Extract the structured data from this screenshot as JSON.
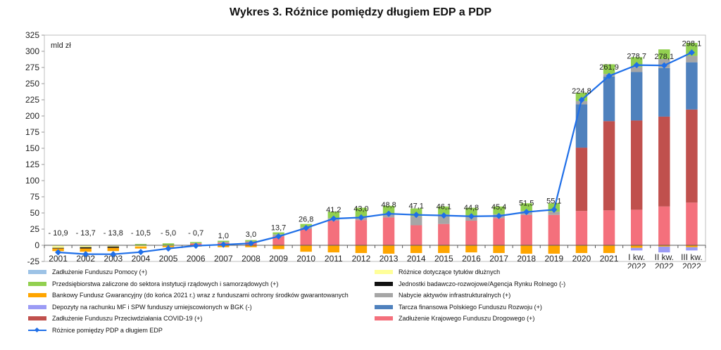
{
  "chart_data": {
    "type": "bar",
    "title": "Wykres 3. Różnice pomiędzy długiem EDP a PDP",
    "unit_label": "mld zł",
    "ylim": [
      -25,
      325
    ],
    "yticks": [
      -25,
      0,
      25,
      50,
      75,
      100,
      125,
      150,
      175,
      200,
      225,
      250,
      275,
      300,
      325
    ],
    "categories": [
      [
        "2001"
      ],
      [
        "2002"
      ],
      [
        "2003"
      ],
      [
        "2004"
      ],
      [
        "2005"
      ],
      [
        "2006"
      ],
      [
        "2007"
      ],
      [
        "2008"
      ],
      [
        "2009"
      ],
      [
        "2010"
      ],
      [
        "2011"
      ],
      [
        "2012"
      ],
      [
        "2013"
      ],
      [
        "2014"
      ],
      [
        "2015"
      ],
      [
        "2016"
      ],
      [
        "2017"
      ],
      [
        "2018"
      ],
      [
        "2019"
      ],
      [
        "2020"
      ],
      [
        "2021"
      ],
      [
        "I kw.",
        "2022"
      ],
      [
        "II kw.",
        "2022"
      ],
      [
        "III kw.",
        "2022"
      ]
    ],
    "series": [
      {
        "name": "Zadłużenie Krajowego Funduszu Drogowego (+)",
        "color": "#f4707c",
        "values": [
          0,
          0,
          0,
          0,
          0,
          3,
          4,
          5,
          14,
          25,
          38,
          39,
          43,
          31,
          33,
          38,
          42,
          47,
          47,
          53,
          54,
          55,
          60,
          66
        ]
      },
      {
        "name": "Zadłużenie Funduszu Przeciwdziałania COVID-19 (+)",
        "color": "#c0504d",
        "values": [
          0,
          0,
          0,
          0,
          0,
          0,
          0,
          0,
          0,
          0,
          0,
          0,
          0,
          0,
          0,
          0,
          0,
          0,
          0,
          98,
          138,
          138,
          139,
          144
        ]
      },
      {
        "name": "Tarcza finansowa Polskiego Funduszu Rozwoju (+)",
        "color": "#4f81bd",
        "values": [
          0,
          0,
          0,
          0,
          0,
          0,
          0,
          0,
          0,
          0,
          0,
          0,
          0,
          0,
          0,
          0,
          0,
          0,
          0,
          67,
          69,
          75,
          75,
          73
        ]
      },
      {
        "name": "Nabycie aktywów infrastrukturalnych (+)",
        "color": "#a6a6a6",
        "values": [
          0,
          0,
          0,
          0,
          0,
          0,
          1,
          1,
          3,
          3,
          4,
          5,
          6,
          14,
          15,
          8,
          6,
          6,
          5,
          5,
          4,
          8,
          14,
          10
        ]
      },
      {
        "name": "Przedsiębiorstwa zaliczone do sektora instytucji rządowych i samorządowych (+)",
        "color": "#92d050",
        "values": [
          0,
          0,
          0,
          2,
          3,
          2,
          2,
          2,
          3,
          5,
          10,
          14,
          12,
          12,
          12,
          12,
          12,
          12,
          13,
          13,
          15,
          15,
          15,
          20
        ]
      },
      {
        "name": "Zadłużenie Funduszu Pomocy (+)",
        "color": "#9dc3e6",
        "values": [
          0,
          0,
          0,
          0,
          0,
          0,
          0,
          0,
          0,
          0,
          0,
          0,
          0,
          0,
          0,
          0,
          0,
          0,
          0,
          0,
          0,
          0,
          0,
          0
        ]
      },
      {
        "name": "Różnice dotyczące tytułów dłużnych",
        "color": "#ffff99",
        "values": [
          -4,
          -3,
          -2,
          -2,
          -1,
          0,
          0,
          0,
          0,
          0,
          0,
          0,
          0,
          0,
          0,
          0,
          0,
          0,
          0,
          0,
          0,
          0,
          0,
          0
        ]
      },
      {
        "name": "Jednostki badawczo-rozwojowe/Agencja Rynku Rolnego (-)",
        "color": "#111111",
        "values": [
          -1,
          -2,
          -2,
          0,
          0,
          0,
          0,
          0,
          0,
          0,
          0,
          0,
          0,
          0,
          0,
          0,
          0,
          0,
          0,
          0,
          0,
          0,
          0,
          0
        ]
      },
      {
        "name": "Bankowy Fundusz Gwarancyjny (do końca 2021 r.) wraz z funduszami ochrony środków gwarantowanych",
        "color": "#ffa500",
        "values": [
          -4,
          -5,
          -5,
          -3,
          -2,
          -2,
          -3,
          -3,
          -6,
          -10,
          -11,
          -12,
          -13,
          -12,
          -12,
          -11,
          -12,
          -13,
          -13,
          -12,
          -12,
          -4,
          -2,
          -3
        ]
      },
      {
        "name": "Depozyty na rachunku MF i SPW funduszy umiejscowionych w BGK (-)",
        "color": "#9b9bf5",
        "values": [
          0,
          0,
          0,
          0,
          0,
          0,
          0,
          0,
          0,
          0,
          0,
          0,
          0,
          0,
          0,
          0,
          0,
          0,
          0,
          0,
          0,
          -4,
          -9,
          -5
        ]
      }
    ],
    "line": {
      "name": "Różnice pomiędzy PDP a długiem EDP",
      "color": "#1f6fe8",
      "values": [
        -10.9,
        -13.7,
        -13.8,
        -10.5,
        -5.0,
        -0.7,
        1.0,
        3.0,
        13.7,
        26.8,
        41.2,
        43.0,
        48.8,
        47.1,
        46.1,
        44.8,
        45.4,
        51.5,
        55.1,
        224.8,
        261.9,
        278.7,
        278.1,
        298.1
      ],
      "labels": [
        "- 10,9",
        "- 13,7",
        "- 13,8",
        "- 10,5",
        "- 5,0",
        "- 0,7",
        "1,0",
        "3,0",
        "13,7",
        "26,8",
        "41,2",
        "43,0",
        "48,8",
        "47,1",
        "46,1",
        "44,8",
        "45,4",
        "51,5",
        "55,1",
        "224,8",
        "261,9",
        "278,7",
        "278,1",
        "298,1"
      ]
    },
    "legend_order": [
      {
        "series": 5,
        "col": 0,
        "row": 0
      },
      {
        "series": 6,
        "col": 1,
        "row": 0
      },
      {
        "series": 4,
        "col": 0,
        "row": 1
      },
      {
        "series": 7,
        "col": 1,
        "row": 1
      },
      {
        "series": 8,
        "col": 0,
        "row": 2
      },
      {
        "series": 3,
        "col": 1,
        "row": 2
      },
      {
        "series": 9,
        "col": 0,
        "row": 3
      },
      {
        "series": 2,
        "col": 1,
        "row": 3
      },
      {
        "series": 1,
        "col": 0,
        "row": 4
      },
      {
        "series": 0,
        "col": 1,
        "row": 4
      },
      {
        "line": true,
        "col": 0,
        "row": 5
      }
    ],
    "grid": false,
    "legend_position": "bottom-left"
  }
}
